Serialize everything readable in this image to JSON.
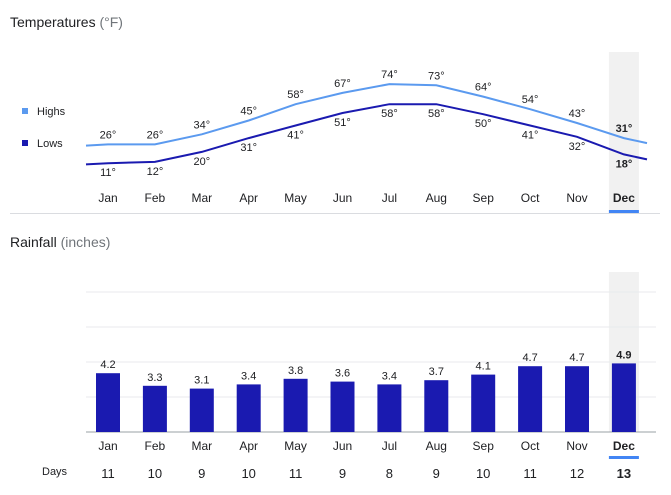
{
  "temperature_section": {
    "title": "Temperatures",
    "unit": "(°F)"
  },
  "rainfall_section": {
    "title": "Rainfall",
    "unit": "(inches)"
  },
  "legend": {
    "highs": "Highs",
    "lows": "Lows"
  },
  "days_label": "Days",
  "selected_month": "Dec",
  "colors": {
    "highs": "#5b9aef",
    "lows": "#1a1ab0",
    "bars": "#1a1ab0",
    "highlight": "#f1f1f1",
    "accent": "#4285f4"
  },
  "chart_data": [
    {
      "type": "line",
      "title": "Temperatures (°F)",
      "categories": [
        "Jan",
        "Feb",
        "Mar",
        "Apr",
        "May",
        "Jun",
        "Jul",
        "Aug",
        "Sep",
        "Oct",
        "Nov",
        "Dec"
      ],
      "series": [
        {
          "name": "Highs",
          "values": [
            26,
            26,
            34,
            45,
            58,
            67,
            74,
            73,
            64,
            54,
            43,
            31
          ]
        },
        {
          "name": "Lows",
          "values": [
            11,
            12,
            20,
            31,
            41,
            51,
            58,
            58,
            50,
            41,
            32,
            18
          ]
        }
      ],
      "value_suffix": "°",
      "ylim": [
        0,
        90
      ],
      "legend": "left"
    },
    {
      "type": "bar",
      "title": "Rainfall (inches)",
      "categories": [
        "Jan",
        "Feb",
        "Mar",
        "Apr",
        "May",
        "Jun",
        "Jul",
        "Aug",
        "Sep",
        "Oct",
        "Nov",
        "Dec"
      ],
      "values": [
        4.2,
        3.3,
        3.1,
        3.4,
        3.8,
        3.6,
        3.4,
        3.7,
        4.1,
        4.7,
        4.7,
        4.9
      ],
      "ylim": [
        0,
        10
      ]
    },
    {
      "type": "table",
      "title": "Days",
      "categories": [
        "Jan",
        "Feb",
        "Mar",
        "Apr",
        "May",
        "Jun",
        "Jul",
        "Aug",
        "Sep",
        "Oct",
        "Nov",
        "Dec"
      ],
      "values": [
        11,
        10,
        9,
        10,
        11,
        9,
        8,
        9,
        10,
        11,
        12,
        13
      ]
    }
  ]
}
